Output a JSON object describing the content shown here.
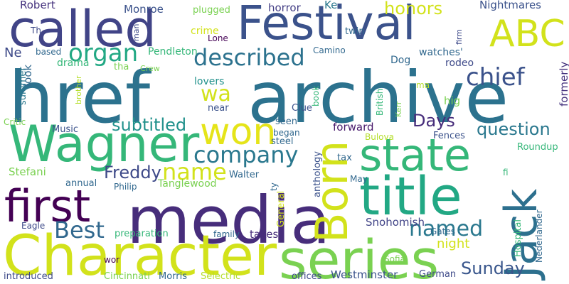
{
  "words": [
    {
      "text": "href",
      "color": "#2c728e"
    },
    {
      "text": "archive",
      "color": "#2c728e"
    },
    {
      "text": "media",
      "color": "#472d7b"
    },
    {
      "text": "Character",
      "color": "#d2e21b"
    },
    {
      "text": "series",
      "color": "#7ad151"
    },
    {
      "text": "title",
      "color": "#22a884"
    },
    {
      "text": "state",
      "color": "#35b779"
    },
    {
      "text": "Jack",
      "color": "#2d708e"
    },
    {
      "text": "Born",
      "color": "#d2e21b"
    },
    {
      "text": "Festival",
      "color": "#3b528b"
    },
    {
      "text": "called",
      "color": "#414487"
    },
    {
      "text": "Wagner",
      "color": "#35b779"
    },
    {
      "text": "first",
      "color": "#440154"
    },
    {
      "text": "won",
      "color": "#e5e419"
    },
    {
      "text": "ABC",
      "color": "#d2e21b"
    },
    {
      "text": "company",
      "color": "#2a788e"
    },
    {
      "text": "organ",
      "color": "#22a884"
    },
    {
      "text": "described",
      "color": "#2c728e"
    },
    {
      "text": "chief",
      "color": "#3b528b"
    },
    {
      "text": "name",
      "color": "#d2e21b"
    },
    {
      "text": "Best",
      "color": "#31688e"
    },
    {
      "text": "named",
      "color": "#2a788e"
    },
    {
      "text": "Sunday",
      "color": "#39568c"
    },
    {
      "text": "Days",
      "color": "#472d7b"
    },
    {
      "text": "question",
      "color": "#2a788e"
    },
    {
      "text": "subtitled",
      "color": "#21918c"
    },
    {
      "text": "Freddy",
      "color": "#3e4a89"
    },
    {
      "text": "honors",
      "color": "#d2e21b"
    },
    {
      "text": "wa",
      "color": "#d2e21b"
    },
    {
      "text": "Robert",
      "color": "#46337e"
    },
    {
      "text": "Monroe",
      "color": "#3b528b"
    },
    {
      "text": "horror",
      "color": "#433e85"
    },
    {
      "text": "Ke",
      "color": "#2a788e"
    },
    {
      "text": "Nightmares",
      "color": "#3b528b"
    },
    {
      "text": "plugged",
      "color": "#7ad151"
    },
    {
      "text": "crime",
      "color": "#d2e21b"
    },
    {
      "text": "Lone",
      "color": "#440154"
    },
    {
      "text": "twin",
      "color": "#31688e"
    },
    {
      "text": "Th",
      "color": "#3e4a89"
    },
    {
      "text": "man",
      "color": "#3e4a89"
    },
    {
      "text": "firm",
      "color": "#3e4a89"
    },
    {
      "text": "Ne",
      "color": "#3e4a89"
    },
    {
      "text": "Pendleton",
      "color": "#35b779"
    },
    {
      "text": "Camino",
      "color": "#31688e"
    },
    {
      "text": "watches'",
      "color": "#31688e"
    },
    {
      "text": "drama",
      "color": "#35b779"
    },
    {
      "text": "tha",
      "color": "#7ad151"
    },
    {
      "text": "Crew",
      "color": "#7ad151"
    },
    {
      "text": "Dog",
      "color": "#31688e"
    },
    {
      "text": "rodeo",
      "color": "#3e4a89"
    },
    {
      "text": "based",
      "color": "#31688e"
    },
    {
      "text": "look",
      "color": "#31688e"
    },
    {
      "text": "lovers",
      "color": "#21918c"
    },
    {
      "text": "ma",
      "color": "#b5de2b"
    },
    {
      "text": "hig",
      "color": "#7ad151"
    },
    {
      "text": "formerly",
      "color": "#46337e"
    },
    {
      "text": "summer",
      "color": "#2a788e"
    },
    {
      "text": "brother",
      "color": "#b5de2b"
    },
    {
      "text": "book",
      "color": "#35b779"
    },
    {
      "text": "British",
      "color": "#35b779"
    },
    {
      "text": "Kerr",
      "color": "#7ad151"
    },
    {
      "text": "near",
      "color": "#3b528b"
    },
    {
      "text": "Clue",
      "color": "#3b528b"
    },
    {
      "text": "Critic",
      "color": "#7ad151"
    },
    {
      "text": "Music",
      "color": "#3b528b"
    },
    {
      "text": "seen",
      "color": "#31688e"
    },
    {
      "text": "began",
      "color": "#31688e"
    },
    {
      "text": "forward",
      "color": "#481a6c"
    },
    {
      "text": "Bulova",
      "color": "#b5de2b"
    },
    {
      "text": "Fences",
      "color": "#3b528b"
    },
    {
      "text": "steel",
      "color": "#31688e"
    },
    {
      "text": "anthology",
      "color": "#3b528b"
    },
    {
      "text": "Roundup",
      "color": "#35b779"
    },
    {
      "text": "tax",
      "color": "#31688e"
    },
    {
      "text": "Stefani",
      "color": "#7ad151"
    },
    {
      "text": "Walter",
      "color": "#31688e"
    },
    {
      "text": "fi",
      "color": "#35b779"
    },
    {
      "text": "annual",
      "color": "#31688e"
    },
    {
      "text": "Philip",
      "color": "#31688e"
    },
    {
      "text": "Tanglewood",
      "color": "#7ad151"
    },
    {
      "text": "ty",
      "color": "#31688e"
    },
    {
      "text": "May",
      "color": "#31688e"
    },
    {
      "text": "General",
      "color": "#d2e21b"
    },
    {
      "text": "Nederlander",
      "color": "#31688e"
    },
    {
      "text": "Eagle",
      "color": "#3e4a89"
    },
    {
      "text": "Hospital",
      "color": "#35b779"
    },
    {
      "text": "preparation",
      "color": "#35b779"
    },
    {
      "text": "family",
      "color": "#31688e"
    },
    {
      "text": "takes",
      "color": "#472d7b"
    },
    {
      "text": "Snohomish",
      "color": "#414487"
    },
    {
      "text": "Gates",
      "color": "#31688e"
    },
    {
      "text": "night",
      "color": "#d2e21b"
    },
    {
      "text": "wor",
      "color": "#440154"
    },
    {
      "text": "Sofia",
      "color": "#7ad151"
    },
    {
      "text": "introduced",
      "color": "#3e4a89"
    },
    {
      "text": "Cincinnati",
      "color": "#7ad151"
    },
    {
      "text": "Morris",
      "color": "#31688e"
    },
    {
      "text": "Selectric",
      "color": "#b5de2b"
    },
    {
      "text": "offices",
      "color": "#3e4a89"
    },
    {
      "text": "Westminster",
      "color": "#3b528b"
    },
    {
      "text": "German",
      "color": "#3e4a89"
    }
  ]
}
